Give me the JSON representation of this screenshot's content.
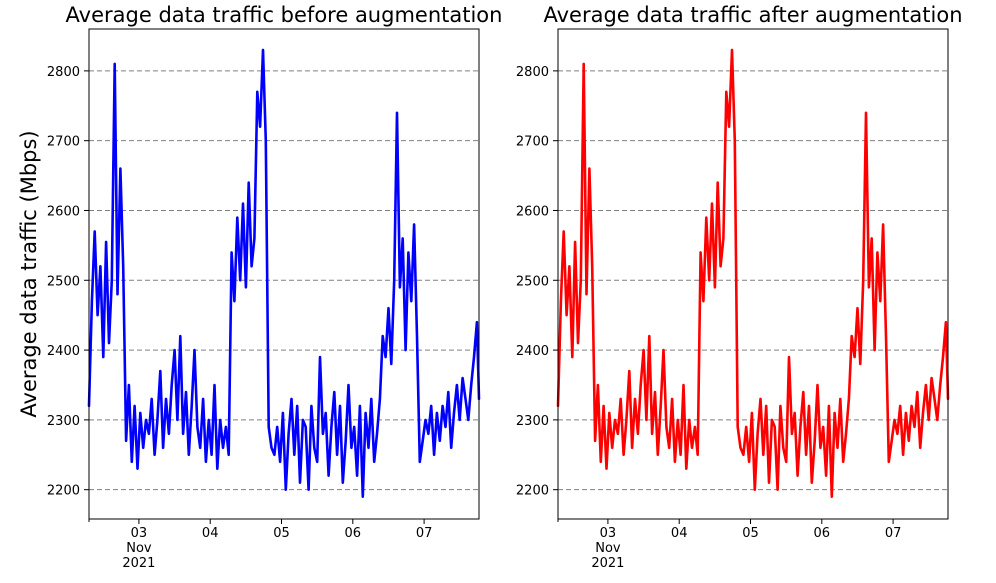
{
  "figure": {
    "ylabel": "Average data traffic (Mbps)"
  },
  "chart_data": [
    {
      "type": "line",
      "title": "Average data traffic before augmentation",
      "xlabel": "",
      "ylabel": "Average data traffic (Mbps)",
      "color": "#0000ff",
      "xlim": [
        2.3,
        7.77
      ],
      "ylim": [
        2158,
        2860
      ],
      "grid": "horizontal dashed",
      "xticks": [
        {
          "x": 3,
          "label": "03",
          "sublabels": [
            "Nov",
            "2021"
          ]
        },
        {
          "x": 4,
          "label": "04"
        },
        {
          "x": 5,
          "label": "05"
        },
        {
          "x": 6,
          "label": "06"
        },
        {
          "x": 7,
          "label": "07"
        }
      ],
      "yticks": [
        2200,
        2300,
        2400,
        2500,
        2600,
        2700,
        2800
      ],
      "series": [
        {
          "x": [
            2.3,
            2.34,
            2.38,
            2.42,
            2.46,
            2.5,
            2.54,
            2.58,
            2.62,
            2.66,
            2.7,
            2.74,
            2.78,
            2.82,
            2.86,
            2.9,
            2.94,
            2.98,
            3.02,
            3.06,
            3.1,
            3.14,
            3.18,
            3.22,
            3.26,
            3.3,
            3.34,
            3.38,
            3.42,
            3.46,
            3.5,
            3.54,
            3.58,
            3.62,
            3.66,
            3.7,
            3.74,
            3.78,
            3.82,
            3.86,
            3.9,
            3.94,
            3.98,
            4.02,
            4.06,
            4.1,
            4.14,
            4.18,
            4.22,
            4.26,
            4.3,
            4.34,
            4.38,
            4.42,
            4.46,
            4.5,
            4.54,
            4.58,
            4.62,
            4.66,
            4.7,
            4.74,
            4.78,
            4.82,
            4.86,
            4.9,
            4.94,
            4.98,
            5.02,
            5.06,
            5.1,
            5.14,
            5.18,
            5.22,
            5.26,
            5.3,
            5.34,
            5.38,
            5.42,
            5.46,
            5.5,
            5.54,
            5.58,
            5.62,
            5.66,
            5.7,
            5.74,
            5.78,
            5.82,
            5.86,
            5.9,
            5.94,
            5.98,
            6.02,
            6.06,
            6.1,
            6.14,
            6.18,
            6.22,
            6.26,
            6.3,
            6.34,
            6.38,
            6.42,
            6.46,
            6.5,
            6.54,
            6.58,
            6.62,
            6.66,
            6.7,
            6.74,
            6.78,
            6.82,
            6.86,
            6.9,
            6.94,
            6.98,
            7.02,
            7.06,
            7.1,
            7.14,
            7.18,
            7.22,
            7.26,
            7.3,
            7.34,
            7.38,
            7.42,
            7.46,
            7.5,
            7.54,
            7.58,
            7.62,
            7.66,
            7.7,
            7.74,
            7.77
          ],
          "values": [
            2320,
            2470,
            2570,
            2450,
            2520,
            2390,
            2555,
            2410,
            2500,
            2810,
            2480,
            2660,
            2520,
            2270,
            2350,
            2240,
            2320,
            2230,
            2310,
            2260,
            2300,
            2280,
            2330,
            2250,
            2300,
            2370,
            2260,
            2330,
            2280,
            2350,
            2400,
            2300,
            2420,
            2280,
            2340,
            2250,
            2320,
            2400,
            2290,
            2260,
            2330,
            2240,
            2300,
            2250,
            2350,
            2230,
            2300,
            2260,
            2290,
            2250,
            2540,
            2470,
            2590,
            2500,
            2610,
            2490,
            2640,
            2520,
            2560,
            2770,
            2720,
            2830,
            2700,
            2290,
            2260,
            2250,
            2290,
            2240,
            2310,
            2200,
            2280,
            2330,
            2250,
            2320,
            2210,
            2300,
            2290,
            2200,
            2320,
            2260,
            2240,
            2390,
            2280,
            2310,
            2220,
            2290,
            2340,
            2250,
            2320,
            2210,
            2270,
            2350,
            2260,
            2290,
            2220,
            2320,
            2190,
            2310,
            2260,
            2330,
            2240,
            2280,
            2330,
            2420,
            2390,
            2460,
            2380,
            2500,
            2740,
            2490,
            2560,
            2400,
            2540,
            2470,
            2580,
            2420,
            2240,
            2270,
            2300,
            2280,
            2320,
            2250,
            2310,
            2270,
            2320,
            2290,
            2340,
            2260,
            2310,
            2350,
            2300,
            2360,
            2330,
            2300,
            2350,
            2390,
            2440,
            2330
          ]
        }
      ]
    },
    {
      "type": "line",
      "title": "Average data traffic after augmentation",
      "xlabel": "",
      "ylabel": "",
      "color": "#ff0000",
      "xlim": [
        2.3,
        7.77
      ],
      "ylim": [
        2158,
        2860
      ],
      "grid": "horizontal dashed",
      "xticks": [
        {
          "x": 3,
          "label": "03",
          "sublabels": [
            "Nov",
            "2021"
          ]
        },
        {
          "x": 4,
          "label": "04"
        },
        {
          "x": 5,
          "label": "05"
        },
        {
          "x": 6,
          "label": "06"
        },
        {
          "x": 7,
          "label": "07"
        }
      ],
      "yticks": [
        2200,
        2300,
        2400,
        2500,
        2600,
        2700,
        2800
      ],
      "series": [
        {
          "x": [
            2.3,
            2.34,
            2.38,
            2.42,
            2.46,
            2.5,
            2.54,
            2.58,
            2.62,
            2.66,
            2.7,
            2.74,
            2.78,
            2.82,
            2.86,
            2.9,
            2.94,
            2.98,
            3.02,
            3.06,
            3.1,
            3.14,
            3.18,
            3.22,
            3.26,
            3.3,
            3.34,
            3.38,
            3.42,
            3.46,
            3.5,
            3.54,
            3.58,
            3.62,
            3.66,
            3.7,
            3.74,
            3.78,
            3.82,
            3.86,
            3.9,
            3.94,
            3.98,
            4.02,
            4.06,
            4.1,
            4.14,
            4.18,
            4.22,
            4.26,
            4.3,
            4.34,
            4.38,
            4.42,
            4.46,
            4.5,
            4.54,
            4.58,
            4.62,
            4.66,
            4.7,
            4.74,
            4.78,
            4.82,
            4.86,
            4.9,
            4.94,
            4.98,
            5.02,
            5.06,
            5.1,
            5.14,
            5.18,
            5.22,
            5.26,
            5.3,
            5.34,
            5.38,
            5.42,
            5.46,
            5.5,
            5.54,
            5.58,
            5.62,
            5.66,
            5.7,
            5.74,
            5.78,
            5.82,
            5.86,
            5.9,
            5.94,
            5.98,
            6.02,
            6.06,
            6.1,
            6.14,
            6.18,
            6.22,
            6.26,
            6.3,
            6.34,
            6.38,
            6.42,
            6.46,
            6.5,
            6.54,
            6.58,
            6.62,
            6.66,
            6.7,
            6.74,
            6.78,
            6.82,
            6.86,
            6.9,
            6.94,
            6.98,
            7.02,
            7.06,
            7.1,
            7.14,
            7.18,
            7.22,
            7.26,
            7.3,
            7.34,
            7.38,
            7.42,
            7.46,
            7.5,
            7.54,
            7.58,
            7.62,
            7.66,
            7.7,
            7.74,
            7.77
          ],
          "values": [
            2320,
            2470,
            2570,
            2450,
            2520,
            2390,
            2555,
            2410,
            2500,
            2810,
            2480,
            2660,
            2520,
            2270,
            2350,
            2240,
            2320,
            2230,
            2310,
            2260,
            2300,
            2280,
            2330,
            2250,
            2300,
            2370,
            2260,
            2330,
            2280,
            2350,
            2400,
            2300,
            2420,
            2280,
            2340,
            2250,
            2320,
            2400,
            2290,
            2260,
            2330,
            2240,
            2300,
            2250,
            2350,
            2230,
            2300,
            2260,
            2290,
            2250,
            2540,
            2470,
            2590,
            2500,
            2610,
            2490,
            2640,
            2520,
            2560,
            2770,
            2720,
            2830,
            2700,
            2290,
            2260,
            2250,
            2290,
            2240,
            2310,
            2200,
            2280,
            2330,
            2250,
            2320,
            2210,
            2300,
            2290,
            2200,
            2320,
            2260,
            2240,
            2390,
            2280,
            2310,
            2220,
            2290,
            2340,
            2250,
            2320,
            2210,
            2270,
            2350,
            2260,
            2290,
            2220,
            2320,
            2190,
            2310,
            2260,
            2330,
            2240,
            2280,
            2330,
            2420,
            2390,
            2460,
            2380,
            2500,
            2740,
            2490,
            2560,
            2400,
            2540,
            2470,
            2580,
            2420,
            2240,
            2270,
            2300,
            2280,
            2320,
            2250,
            2310,
            2270,
            2320,
            2290,
            2340,
            2260,
            2310,
            2350,
            2300,
            2360,
            2330,
            2300,
            2350,
            2390,
            2440,
            2330
          ]
        }
      ]
    }
  ]
}
